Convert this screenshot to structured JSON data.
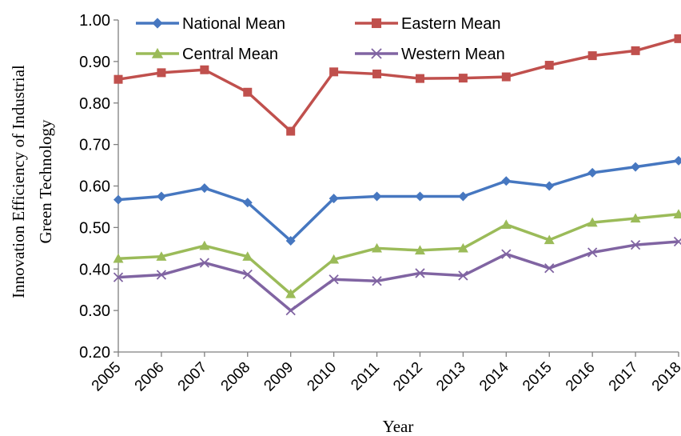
{
  "chart_data": {
    "type": "line",
    "title": "",
    "xlabel": "Year",
    "ylabel_lines": [
      "Innovation Efficiency of Industrial",
      "Green Technology"
    ],
    "ylim": [
      0.2,
      1.0
    ],
    "yticks": [
      "0.20",
      "0.30",
      "0.40",
      "0.50",
      "0.60",
      "0.70",
      "0.80",
      "0.90",
      "1.00"
    ],
    "ytick_values": [
      0.2,
      0.3,
      0.4,
      0.5,
      0.6,
      0.7,
      0.8,
      0.9,
      1.0
    ],
    "categories": [
      "2005",
      "2006",
      "2007",
      "2008",
      "2009",
      "2010",
      "2011",
      "2012",
      "2013",
      "2014",
      "2015",
      "2016",
      "2017",
      "2018"
    ],
    "grid": false,
    "legend": "top",
    "series": [
      {
        "name": "National Mean",
        "color": "#4677c0",
        "marker": "diamond",
        "values": [
          0.567,
          0.575,
          0.595,
          0.56,
          0.468,
          0.57,
          0.575,
          0.575,
          0.575,
          0.612,
          0.6,
          0.632,
          0.646,
          0.661
        ]
      },
      {
        "name": "Eastern Mean",
        "color": "#c0504d",
        "marker": "square",
        "values": [
          0.857,
          0.873,
          0.88,
          0.826,
          0.732,
          0.875,
          0.87,
          0.859,
          0.86,
          0.863,
          0.891,
          0.914,
          0.926,
          0.955
        ]
      },
      {
        "name": "Central Mean",
        "color": "#9bbb59",
        "marker": "triangle",
        "values": [
          0.425,
          0.43,
          0.456,
          0.43,
          0.34,
          0.423,
          0.45,
          0.445,
          0.45,
          0.507,
          0.47,
          0.512,
          0.522,
          0.532
        ]
      },
      {
        "name": "Western Mean",
        "color": "#8064a2",
        "marker": "x",
        "values": [
          0.38,
          0.386,
          0.415,
          0.387,
          0.3,
          0.375,
          0.371,
          0.39,
          0.384,
          0.436,
          0.402,
          0.44,
          0.458,
          0.466
        ]
      }
    ]
  }
}
